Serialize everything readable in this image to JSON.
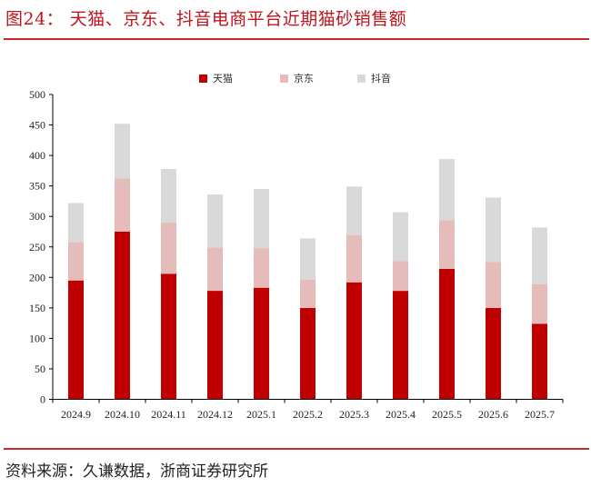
{
  "header": {
    "title": "图24：  天猫、京东、抖音电商平台近期猫砂销售额"
  },
  "footer": {
    "source": "资料来源：久谦数据，浙商证券研究所"
  },
  "colors": {
    "tmall": "#c00000",
    "jd": "#e6bcbb",
    "douyin": "#d9d9d9",
    "accent": "#c8282e"
  },
  "legend": [
    {
      "label": "天猫",
      "color": "#c00000"
    },
    {
      "label": "京东",
      "color": "#e6bcbb"
    },
    {
      "label": "抖音",
      "color": "#d9d9d9"
    }
  ],
  "chart_data": {
    "type": "bar",
    "stacked": true,
    "title": "天猫、京东、抖音电商平台近期猫砂销售额",
    "xlabel": "",
    "ylabel": "",
    "ylim": [
      0,
      500
    ],
    "yticks": [
      0,
      50,
      100,
      150,
      200,
      250,
      300,
      350,
      400,
      450,
      500
    ],
    "grid": false,
    "legend_position": "top",
    "categories": [
      "2024.9",
      "2024.10",
      "2024.11",
      "2024.12",
      "2025.1",
      "2025.2",
      "2025.3",
      "2025.4",
      "2025.5",
      "2025.6",
      "2025.7"
    ],
    "series": [
      {
        "name": "天猫",
        "values": [
          195,
          275,
          206,
          178,
          183,
          150,
          192,
          178,
          214,
          150,
          124
        ]
      },
      {
        "name": "京东",
        "values": [
          63,
          87,
          84,
          71,
          65,
          46,
          77,
          49,
          80,
          75,
          65
        ]
      },
      {
        "name": "抖音",
        "values": [
          64,
          90,
          88,
          87,
          97,
          68,
          80,
          80,
          100,
          106,
          93
        ]
      }
    ],
    "totals": [
      322,
      452,
      378,
      336,
      345,
      264,
      349,
      307,
      394,
      331,
      282
    ]
  }
}
